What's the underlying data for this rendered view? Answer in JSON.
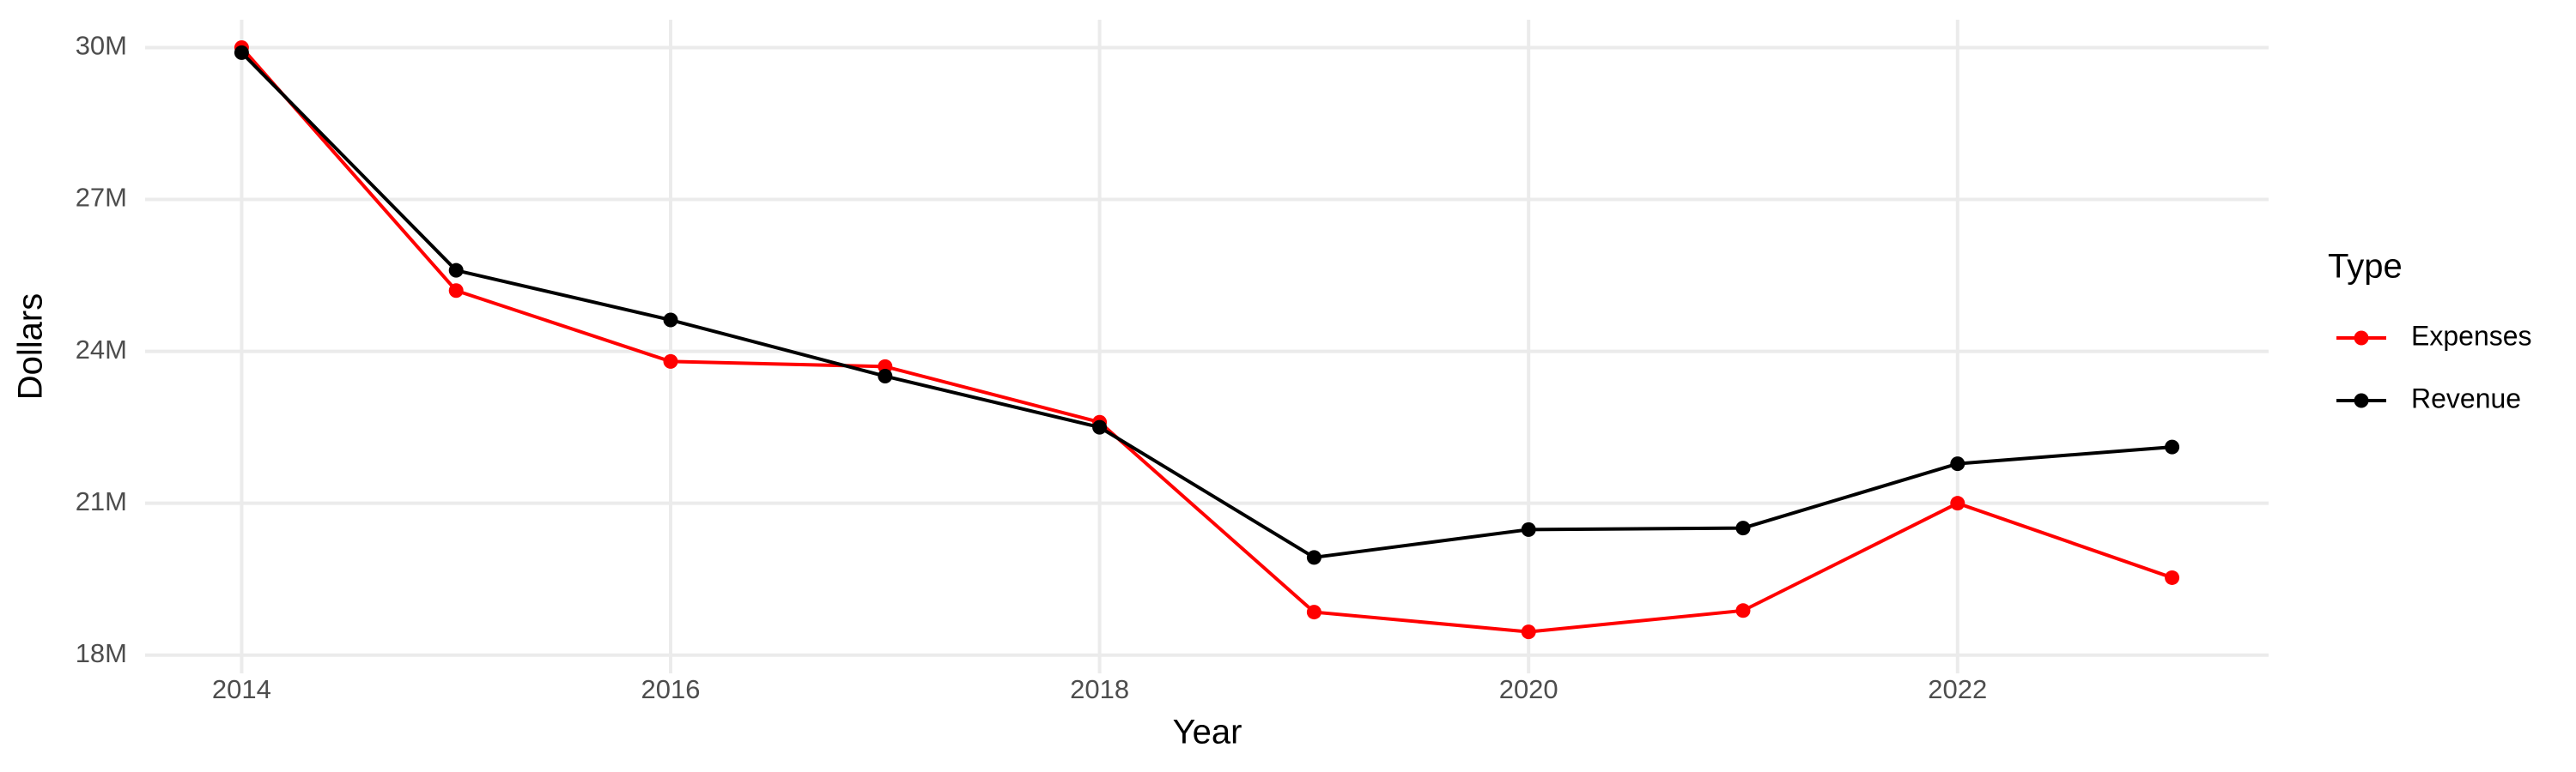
{
  "chart_data": {
    "type": "line",
    "x_label": "Year",
    "y_label": "Dollars",
    "legend_title": "Type",
    "x": [
      2014,
      2015,
      2016,
      2017,
      2018,
      2019,
      2020,
      2021,
      2022,
      2023
    ],
    "series": [
      {
        "name": "Expenses",
        "color": "#ff0000",
        "values": [
          30000000,
          25200000,
          23800000,
          23700000,
          22600000,
          18850000,
          18460000,
          18880000,
          21000000,
          19530000
        ]
      },
      {
        "name": "Revenue",
        "color": "#000000",
        "values": [
          29900000,
          25600000,
          24620000,
          23510000,
          22500000,
          19930000,
          20480000,
          20510000,
          21780000,
          22110000
        ]
      }
    ],
    "xlim": [
      2013.55,
      2023.45
    ],
    "xticks": [
      2014,
      2016,
      2018,
      2020,
      2022
    ],
    "ylim": [
      17640000,
      30550000
    ],
    "yticks": [
      {
        "value": 18000000,
        "label": "18M"
      },
      {
        "value": 21000000,
        "label": "21M"
      },
      {
        "value": 24000000,
        "label": "24M"
      },
      {
        "value": 27000000,
        "label": "27M"
      },
      {
        "value": 30000000,
        "label": "30M"
      }
    ],
    "grid": true,
    "legend": "right"
  }
}
